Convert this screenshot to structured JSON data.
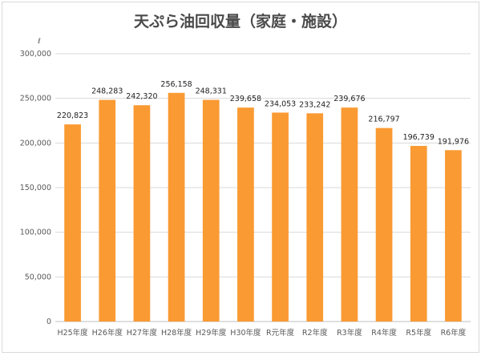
{
  "chart_data": {
    "type": "bar",
    "title": "天ぷら油回収量（家庭・施設）",
    "ylabel": "ℓ",
    "xlabel": "",
    "categories": [
      "H25年度",
      "H26年度",
      "H27年度",
      "H28年度",
      "H29年度",
      "H30年度",
      "R元年度",
      "R2年度",
      "R3年度",
      "R4年度",
      "R5年度",
      "R6年度"
    ],
    "values": [
      220823,
      248283,
      242320,
      256158,
      248331,
      239658,
      234053,
      233242,
      239676,
      216797,
      196739,
      191976
    ],
    "value_labels": [
      "220,823",
      "248,283",
      "242,320",
      "256,158",
      "248,331",
      "239,658",
      "234,053",
      "233,242",
      "239,676",
      "216,797",
      "196,739",
      "191,976"
    ],
    "ylim": [
      0,
      300000
    ],
    "yticks": [
      0,
      50000,
      100000,
      150000,
      200000,
      250000,
      300000
    ],
    "ytick_labels": [
      "0",
      "50,000",
      "100,000",
      "150,000",
      "200,000",
      "250,000",
      "300,000"
    ],
    "grid": true,
    "bar_color": "#fa9a33"
  }
}
